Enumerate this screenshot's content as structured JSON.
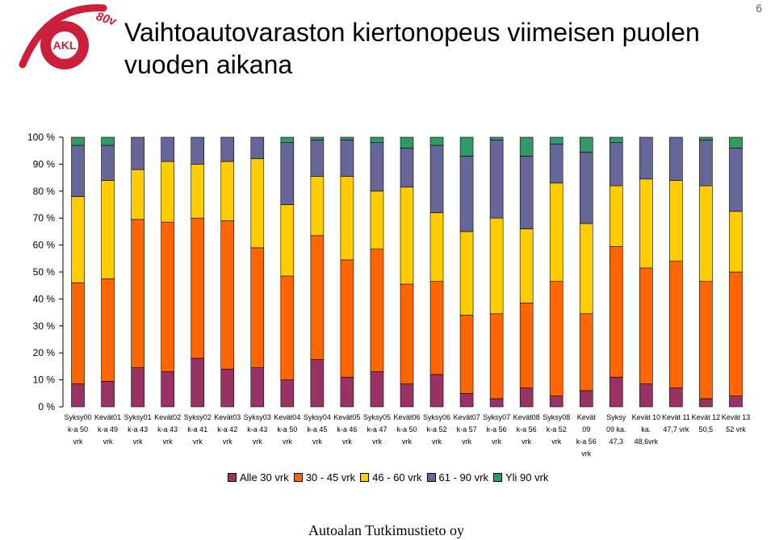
{
  "header": {
    "title": "Vaihtoautovaraston kiertonopeus viimeisen puolen vuoden aikana",
    "page_number": "6",
    "logo_text": "AKL",
    "logo_badge": "80v"
  },
  "footer": {
    "credit": "Autoalan Tutkimustieto oy"
  },
  "colors": {
    "series": [
      "#993366",
      "#ff6600",
      "#ffcc00",
      "#666699",
      "#339966"
    ],
    "axis": "#000000",
    "logo_red": "#cc1f3c"
  },
  "chart_data": {
    "type": "bar",
    "stacked": true,
    "percent_stacked": true,
    "title": "",
    "xlabel": "",
    "ylabel": "",
    "ylim": [
      0,
      100
    ],
    "yticks": [
      "0 %",
      "10 %",
      "20 %",
      "30 %",
      "40 %",
      "50 %",
      "60 %",
      "70 %",
      "80 %",
      "90 %",
      "100 %"
    ],
    "legend_position": "bottom",
    "grid": false,
    "categories": [
      [
        "Syksy00",
        "k-a 50",
        "vrk"
      ],
      [
        "Kevät01",
        "k-a 49",
        "vrk"
      ],
      [
        "Syksy01",
        "k-a 43",
        "vrk"
      ],
      [
        "Kevät02",
        "k-a 43",
        "vrk"
      ],
      [
        "Syksy02",
        "k-a 41",
        "vrk"
      ],
      [
        "Kevät03",
        "k-a 42",
        "vrk"
      ],
      [
        "Syksy03",
        "k-a 43",
        "vrk"
      ],
      [
        "Kevät04",
        "k-a 50",
        "vrk"
      ],
      [
        "Syksy04",
        "k-a 45",
        "vrk"
      ],
      [
        "Kevät05",
        "k-a 46",
        "vrk"
      ],
      [
        "Syksy05",
        "k-a 47",
        "vrk"
      ],
      [
        "Kevät06",
        "k-a 50",
        "vrk"
      ],
      [
        "Syksy06",
        "k-a 52",
        "vrk"
      ],
      [
        "Kevät07",
        "k-a 57",
        "vrk"
      ],
      [
        "Syksy07",
        "k-a 56",
        "vrk"
      ],
      [
        "Kevät08",
        "k-a 56",
        "vrk"
      ],
      [
        "Syksy08",
        "k-a 52",
        "vrk"
      ],
      [
        "Kevät",
        "09",
        "k-a 56",
        "vrk"
      ],
      [
        "Syksy",
        "09 ka.",
        "47,3"
      ],
      [
        "Kevät 10",
        "ka.",
        "48,6vrk"
      ],
      [
        "Kevät 11",
        "47,7 vrk"
      ],
      [
        "Kevät 12",
        "50,5"
      ],
      [
        "Kevät 13",
        "52 vrk"
      ]
    ],
    "series": [
      {
        "name": "Alle 30 vrk",
        "values": [
          8.5,
          9.5,
          14.5,
          13,
          18,
          14,
          14.5,
          10,
          17.5,
          11,
          13,
          8.5,
          12,
          5,
          3,
          7,
          4,
          6,
          11,
          8.5,
          7,
          3,
          4
        ]
      },
      {
        "name": "30 - 45 vrk",
        "values": [
          37.5,
          38,
          55,
          55.5,
          52,
          55,
          44.5,
          38.5,
          46,
          43.5,
          45.5,
          37,
          34.5,
          29,
          31.5,
          31.5,
          42.5,
          28.5,
          48.5,
          43,
          47,
          43.5,
          46
        ]
      },
      {
        "name": "46 - 60 vrk",
        "values": [
          32,
          36.5,
          18.5,
          22.5,
          20,
          22,
          33,
          26.5,
          22,
          31,
          21.5,
          36,
          25.5,
          31,
          35.5,
          27.5,
          36.5,
          33.5,
          22.5,
          33,
          30,
          35.5,
          22.5
        ]
      },
      {
        "name": "61 - 90 vrk",
        "values": [
          19,
          13,
          12,
          9,
          10,
          9,
          8,
          23,
          13.5,
          13.5,
          18,
          14.5,
          25,
          28,
          29,
          27,
          14.5,
          26.5,
          16,
          15.5,
          16,
          17,
          23.5
        ]
      },
      {
        "name": "Yli 90 vrk",
        "values": [
          3,
          3,
          0,
          0,
          0,
          0,
          0,
          2,
          1,
          1,
          2,
          4,
          3,
          7,
          1,
          7,
          2.5,
          5.5,
          2,
          0,
          0,
          1,
          4
        ]
      }
    ]
  }
}
